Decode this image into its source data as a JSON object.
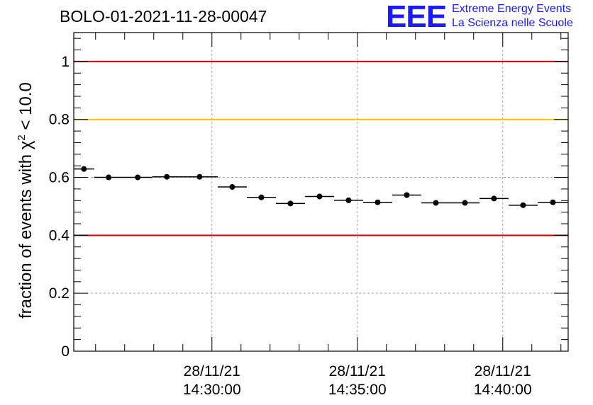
{
  "title": "BOLO-01-2021-11-28-00047",
  "logo": {
    "mark": "EEE",
    "line1": "Extreme Energy Events",
    "line2": "La Scienza nelle Scuole"
  },
  "colors": {
    "red_threshold": "#e00000",
    "yellow_threshold": "#ffc000",
    "logo": "#1a1aff",
    "grid": "#aaaaaa",
    "marker": "#000000"
  },
  "chart_data": {
    "type": "scatter",
    "title": "BOLO-01-2021-11-28-00047",
    "ylabel_prefix": "fraction of events with",
    "ylabel_symbol": "χ",
    "ylabel_exponent": "2",
    "ylabel_suffix": "< 10.0",
    "ylim": [
      0,
      1.1
    ],
    "xlim": [
      "14:25:15",
      "14:42:15"
    ],
    "grid": true,
    "yticks": [
      {
        "value": 0,
        "label": "0"
      },
      {
        "value": 0.2,
        "label": "0.2"
      },
      {
        "value": 0.4,
        "label": "0.4"
      },
      {
        "value": 0.6,
        "label": "0.6"
      },
      {
        "value": 0.8,
        "label": "0.8"
      },
      {
        "value": 1,
        "label": "1"
      }
    ],
    "xticks": [
      {
        "time": "14:30:00",
        "date": "28/11/21",
        "label": "14:30:00"
      },
      {
        "time": "14:35:00",
        "date": "28/11/21",
        "label": "14:35:00"
      },
      {
        "time": "14:40:00",
        "date": "28/11/21",
        "label": "14:40:00"
      }
    ],
    "reference_lines": [
      {
        "value": 1.0,
        "color": "#e00000"
      },
      {
        "value": 0.8,
        "color": "#ffc000"
      },
      {
        "value": 0.4,
        "color": "#e00000"
      }
    ],
    "points": [
      {
        "start": "14:25:15",
        "end": "14:25:57",
        "y": 0.629
      },
      {
        "start": "14:25:57",
        "end": "14:26:57",
        "y": 0.6
      },
      {
        "start": "14:26:57",
        "end": "14:27:57",
        "y": 0.6
      },
      {
        "start": "14:27:57",
        "end": "14:28:57",
        "y": 0.602
      },
      {
        "start": "14:28:57",
        "end": "14:30:12",
        "y": 0.602
      },
      {
        "start": "14:30:12",
        "end": "14:31:12",
        "y": 0.567
      },
      {
        "start": "14:31:12",
        "end": "14:32:12",
        "y": 0.531
      },
      {
        "start": "14:32:12",
        "end": "14:33:12",
        "y": 0.51
      },
      {
        "start": "14:33:12",
        "end": "14:34:12",
        "y": 0.534
      },
      {
        "start": "14:34:12",
        "end": "14:35:12",
        "y": 0.521
      },
      {
        "start": "14:35:12",
        "end": "14:36:12",
        "y": 0.514
      },
      {
        "start": "14:36:12",
        "end": "14:37:12",
        "y": 0.539
      },
      {
        "start": "14:37:12",
        "end": "14:38:12",
        "y": 0.512
      },
      {
        "start": "14:38:12",
        "end": "14:39:12",
        "y": 0.512
      },
      {
        "start": "14:39:12",
        "end": "14:40:12",
        "y": 0.527
      },
      {
        "start": "14:40:12",
        "end": "14:41:12",
        "y": 0.504
      },
      {
        "start": "14:41:12",
        "end": "14:42:15",
        "y": 0.514
      }
    ]
  }
}
